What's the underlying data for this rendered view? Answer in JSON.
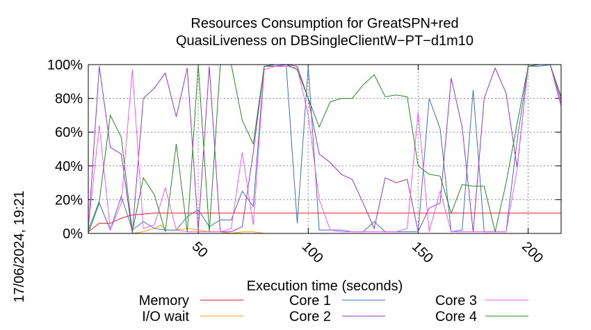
{
  "chart_data": {
    "type": "line",
    "title_line1": "Resources Consumption for GreatSPN+red",
    "title_line2": "QuasiLiveness on DBSingleClientW−PT−d1m10",
    "xlabel": "Execution time (seconds)",
    "side_label": "17/06/2024, 19:21",
    "xlim": [
      0,
      215
    ],
    "ylim": [
      0,
      100
    ],
    "x_ticks": [
      50,
      100,
      150,
      200
    ],
    "y_ticks": [
      0,
      20,
      40,
      60,
      80,
      100
    ],
    "y_tick_labels": [
      "0%",
      "20%",
      "40%",
      "60%",
      "80%",
      "100%"
    ],
    "grid": true,
    "legend_position": "bottom",
    "series": [
      {
        "name": "Memory",
        "color": "#e41a1c",
        "x": [
          0,
          5,
          10,
          15,
          20,
          25,
          30,
          40,
          50,
          60,
          80,
          100,
          130,
          150,
          160,
          170,
          200,
          215
        ],
        "y": [
          1,
          6,
          6,
          9,
          11,
          11.5,
          12,
          12,
          12,
          12,
          12,
          12,
          12,
          12,
          12,
          12,
          12,
          12
        ]
      },
      {
        "name": "I/O wait",
        "color": "#f0a000",
        "x": [
          0,
          5,
          10,
          15,
          20,
          25,
          30,
          33,
          35,
          40,
          45,
          50,
          55,
          60,
          65,
          70,
          75,
          80
        ],
        "y": [
          0,
          0,
          0,
          0,
          0,
          1,
          3,
          5,
          2,
          2,
          3,
          2,
          1,
          1,
          0,
          1,
          1,
          0
        ]
      },
      {
        "name": "Core 1",
        "color": "#3a6fc4",
        "x": [
          0,
          5,
          10,
          15,
          20,
          25,
          30,
          35,
          40,
          45,
          50,
          55,
          60,
          65,
          70,
          75,
          80,
          85,
          90,
          95,
          100,
          105,
          110,
          115,
          120,
          125,
          130,
          135,
          140,
          145,
          150,
          155,
          160,
          165,
          170,
          175,
          180,
          185,
          190,
          195,
          200,
          205,
          210,
          215
        ],
        "y": [
          0,
          18,
          2,
          22,
          2,
          7,
          3,
          2,
          2,
          10,
          14,
          4,
          8,
          8,
          25,
          16,
          99,
          99,
          99,
          6,
          99,
          2,
          2,
          2,
          1,
          1,
          7,
          1,
          1,
          1,
          1,
          80,
          62,
          1,
          2,
          85,
          1,
          1,
          1,
          55,
          99,
          99,
          100,
          80
        ]
      },
      {
        "name": "Core 2",
        "color": "#9932cc",
        "x": [
          0,
          5,
          10,
          15,
          20,
          25,
          30,
          35,
          40,
          45,
          50,
          55,
          60,
          65,
          70,
          75,
          80,
          85,
          90,
          95,
          100,
          105,
          110,
          115,
          120,
          125,
          130,
          135,
          140,
          145,
          150,
          155,
          160,
          165,
          170,
          175,
          180,
          185,
          190,
          195,
          200,
          205,
          210,
          215
        ],
        "y": [
          2,
          99,
          51,
          47,
          0,
          80,
          86,
          95,
          69,
          98,
          2,
          99,
          1,
          1,
          4,
          48,
          99,
          99,
          100,
          99,
          80,
          47,
          42,
          35,
          32,
          18,
          3,
          33,
          30,
          32,
          1,
          15,
          18,
          92,
          63,
          1,
          80,
          98,
          83,
          39,
          99,
          100,
          100,
          77
        ]
      },
      {
        "name": "Core 3",
        "color": "#ff55ff",
        "x": [
          0,
          5,
          10,
          15,
          20,
          25,
          30,
          35,
          40,
          45,
          50,
          55,
          60,
          65,
          70,
          75,
          80,
          85,
          90,
          95,
          100,
          105,
          110,
          115,
          120,
          125,
          130,
          135,
          140,
          145,
          150,
          155,
          160,
          165,
          170,
          175,
          180,
          185,
          190,
          195,
          200,
          205,
          210,
          215
        ],
        "y": [
          4,
          64,
          2,
          18,
          97,
          3,
          5,
          27,
          2,
          1,
          1,
          1,
          1,
          3,
          48,
          5,
          97,
          99,
          99,
          98,
          70,
          20,
          2,
          1,
          1,
          1,
          1,
          1,
          1,
          3,
          72,
          1,
          25,
          1,
          1,
          1,
          1,
          1,
          1,
          38,
          99,
          100,
          100,
          75
        ]
      },
      {
        "name": "Core 4",
        "color": "#228b22",
        "x": [
          0,
          5,
          10,
          15,
          20,
          25,
          30,
          35,
          40,
          45,
          50,
          55,
          60,
          65,
          70,
          75,
          80,
          85,
          90,
          95,
          100,
          105,
          110,
          115,
          120,
          125,
          130,
          135,
          140,
          145,
          150,
          155,
          160,
          165,
          170,
          175,
          180,
          185,
          190,
          195,
          200,
          205,
          210,
          215
        ],
        "y": [
          2,
          19,
          70,
          57,
          1,
          33,
          23,
          1,
          53,
          1,
          100,
          1,
          100,
          100,
          67,
          53,
          99,
          100,
          100,
          97,
          80,
          63,
          78,
          80,
          80,
          88,
          94,
          81,
          82,
          81,
          40,
          35,
          34,
          12,
          29,
          28,
          28,
          1,
          30,
          65,
          99,
          100,
          100,
          81
        ]
      }
    ]
  }
}
